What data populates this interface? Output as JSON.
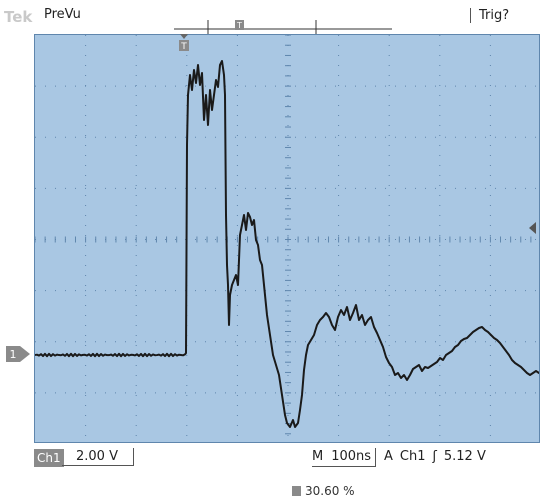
{
  "topbar": {
    "brand": "Tek",
    "acq_state": "PreVu",
    "trigger_status": "Trig?"
  },
  "graticule": {
    "divisions_x": 10,
    "divisions_y": 8
  },
  "channel": {
    "marker_label": "1",
    "tag": "Ch1",
    "scale": "2.00 V"
  },
  "timebase": {
    "mode_label": "M",
    "value": "100ns"
  },
  "trigger": {
    "symbol": "A",
    "source": "Ch1",
    "slope_symbol": "ʃ",
    "level": "5.12 V",
    "position_readout": "30.60 %",
    "marker_label": "T"
  },
  "colors": {
    "graticule_bg": "#a9c7e3",
    "grid_dots": "#5f86ad",
    "trace": "#1a1a1a",
    "chip": "#8a8a8a"
  }
}
